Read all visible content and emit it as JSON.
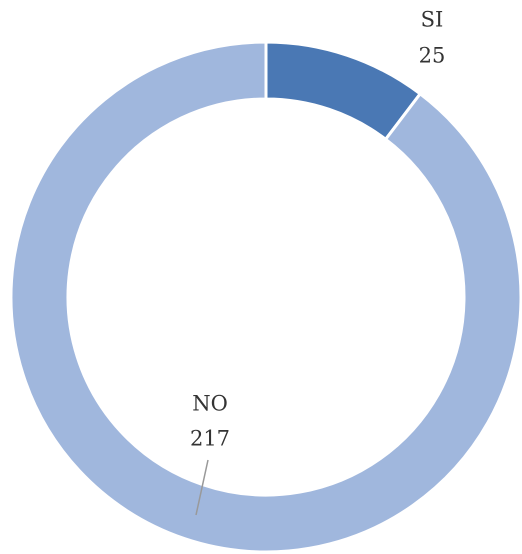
{
  "chart_data": {
    "type": "donut",
    "categories": [
      "SI",
      "NO"
    ],
    "values": [
      25,
      217
    ],
    "colors": [
      "#4a78b4",
      "#a0b7dd"
    ]
  }
}
